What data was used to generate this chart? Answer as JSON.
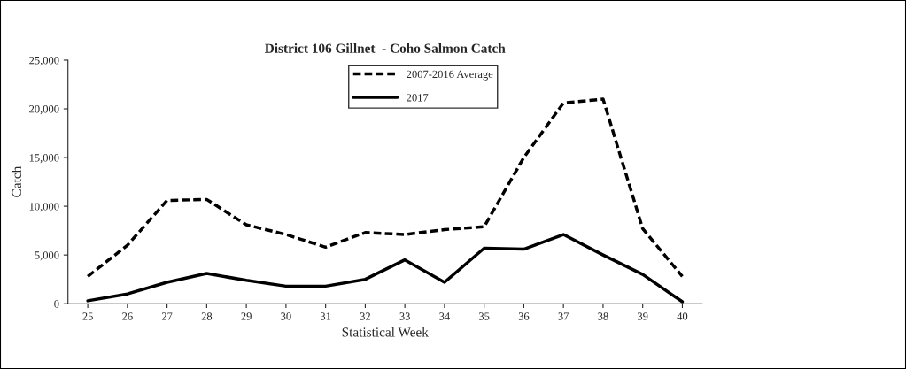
{
  "chart_data": {
    "type": "line",
    "title": "District 106 Gillnet  - Coho Salmon Catch",
    "xlabel": "Statistical Week",
    "ylabel": "Catch",
    "categories": [
      "25",
      "26",
      "27",
      "28",
      "29",
      "30",
      "31",
      "32",
      "33",
      "34",
      "35",
      "36",
      "37",
      "38",
      "39",
      "40"
    ],
    "series": [
      {
        "name": "2007-2016 Average",
        "color": "#000000",
        "line_style": "dashed",
        "values": [
          2800,
          6000,
          10600,
          10700,
          8100,
          7100,
          5800,
          7300,
          7100,
          7600,
          7900,
          15000,
          20600,
          21000,
          7700,
          2800
        ]
      },
      {
        "name": "2017",
        "color": "#000000",
        "line_style": "solid",
        "values": [
          300,
          1000,
          2200,
          3100,
          2400,
          1800,
          1800,
          2500,
          4500,
          2200,
          5700,
          5600,
          7100,
          5000,
          3000,
          200
        ]
      }
    ],
    "ylim": [
      0,
      25000
    ],
    "yticks": [
      {
        "value": 0,
        "label": "0"
      },
      {
        "value": 5000,
        "label": "5,000"
      },
      {
        "value": 10000,
        "label": "10,000"
      },
      {
        "value": 15000,
        "label": "15,000"
      },
      {
        "value": 20000,
        "label": "20,000"
      },
      {
        "value": 25000,
        "label": "25,000"
      }
    ],
    "grid": false,
    "legend": "top",
    "marker": "none"
  }
}
